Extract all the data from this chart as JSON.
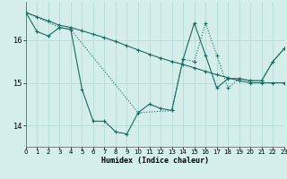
{
  "xlabel": "Humidex (Indice chaleur)",
  "bg_color": "#d4eeea",
  "grid_color": "#b8dcd8",
  "line_color": "#1a6b60",
  "xlim": [
    0,
    23
  ],
  "ylim": [
    13.5,
    16.9
  ],
  "yticks": [
    14,
    15,
    16
  ],
  "xticks": [
    0,
    1,
    2,
    3,
    4,
    5,
    6,
    7,
    8,
    9,
    10,
    11,
    12,
    13,
    14,
    15,
    16,
    17,
    18,
    19,
    20,
    21,
    22,
    23
  ],
  "series": [
    {
      "x": [
        0,
        1,
        2,
        3,
        4,
        5,
        6,
        7,
        8,
        9,
        10,
        11,
        12,
        13,
        14,
        15,
        16,
        17,
        18,
        19,
        20,
        21,
        22,
        23
      ],
      "y": [
        16.65,
        16.55,
        16.45,
        16.35,
        16.3,
        16.22,
        16.14,
        16.06,
        15.97,
        15.87,
        15.77,
        15.67,
        15.58,
        15.5,
        15.43,
        15.35,
        15.27,
        15.19,
        15.12,
        15.05,
        15.0,
        15.0,
        15.0,
        15.0
      ],
      "linestyle": "-",
      "marker": "+"
    },
    {
      "x": [
        0,
        1,
        2,
        3,
        4,
        5,
        6,
        7,
        8,
        9,
        10,
        11,
        12,
        13,
        14,
        15,
        16,
        17,
        18,
        19,
        20,
        21,
        22,
        23
      ],
      "y": [
        16.65,
        16.2,
        16.1,
        16.3,
        16.25,
        14.85,
        14.1,
        14.1,
        13.85,
        13.8,
        14.3,
        14.5,
        14.4,
        14.35,
        15.55,
        16.4,
        15.65,
        14.88,
        15.1,
        15.1,
        15.05,
        15.05,
        15.5,
        15.8
      ],
      "linestyle": "-",
      "marker": "+"
    },
    {
      "x": [
        0,
        3,
        4,
        10,
        13,
        14,
        15,
        16,
        17,
        18,
        19,
        20,
        21,
        22,
        23
      ],
      "y": [
        16.65,
        16.3,
        16.25,
        14.3,
        14.35,
        15.55,
        15.5,
        16.4,
        15.65,
        14.88,
        15.1,
        15.05,
        15.05,
        15.5,
        15.8
      ],
      "linestyle": ":",
      "marker": "+"
    }
  ]
}
